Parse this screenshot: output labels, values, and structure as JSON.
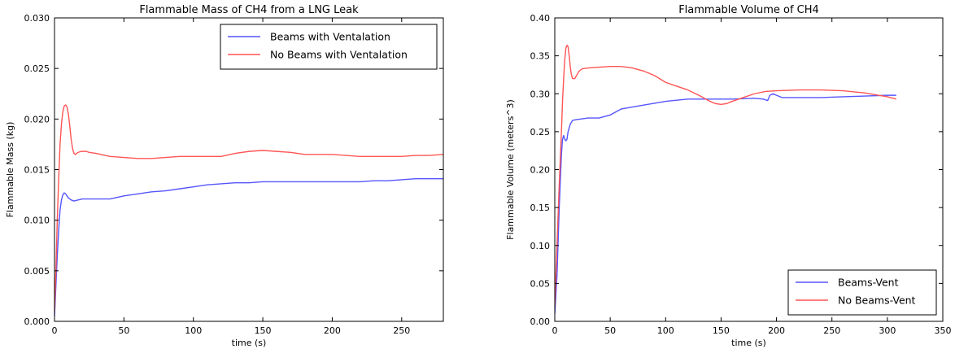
{
  "chart_data": [
    {
      "type": "line",
      "title": "Flammable Mass of CH4 from a LNG Leak",
      "xlabel": "time (s)",
      "ylabel": "Flammable Mass (kg)",
      "xlim": [
        0,
        280
      ],
      "ylim": [
        0,
        0.03
      ],
      "xticks": [
        "0",
        "50",
        "100",
        "150",
        "200",
        "250"
      ],
      "yticks": [
        "0.000",
        "0.005",
        "0.010",
        "0.015",
        "0.020",
        "0.025",
        "0.030"
      ],
      "grid": false,
      "legend_position": "top-right",
      "series": [
        {
          "name": "Beams with Ventalation",
          "color": "#5555ff",
          "x": [
            0,
            1,
            2,
            3,
            4,
            5,
            6,
            7,
            8,
            9,
            10,
            12,
            14,
            17,
            20,
            25,
            30,
            40,
            50,
            60,
            70,
            80,
            90,
            100,
            110,
            120,
            130,
            140,
            150,
            160,
            170,
            180,
            190,
            200,
            210,
            220,
            230,
            240,
            250,
            260,
            270,
            280
          ],
          "y": [
            0.0005,
            0.0035,
            0.0065,
            0.009,
            0.011,
            0.012,
            0.0125,
            0.0127,
            0.0126,
            0.0124,
            0.0122,
            0.012,
            0.0119,
            0.012,
            0.0121,
            0.0121,
            0.0121,
            0.0121,
            0.0124,
            0.0126,
            0.0128,
            0.0129,
            0.0131,
            0.0133,
            0.0135,
            0.0136,
            0.0137,
            0.0137,
            0.0138,
            0.0138,
            0.0138,
            0.0138,
            0.0138,
            0.0138,
            0.0138,
            0.0138,
            0.0139,
            0.0139,
            0.014,
            0.0141,
            0.0141,
            0.0141
          ]
        },
        {
          "name": "No Beams with Ventalation",
          "color": "#ff5555",
          "x": [
            0,
            1,
            2,
            3,
            4,
            5,
            6,
            7,
            8,
            9,
            10,
            11,
            12,
            13,
            14,
            15,
            17,
            19,
            21,
            23,
            25,
            30,
            40,
            50,
            60,
            70,
            80,
            90,
            100,
            110,
            120,
            130,
            140,
            150,
            160,
            170,
            180,
            190,
            200,
            210,
            220,
            230,
            240,
            250,
            260,
            270,
            280
          ],
          "y": [
            0.001,
            0.005,
            0.01,
            0.014,
            0.0175,
            0.0195,
            0.0207,
            0.0213,
            0.0214,
            0.0212,
            0.0205,
            0.0193,
            0.018,
            0.0171,
            0.0166,
            0.0165,
            0.0167,
            0.0168,
            0.0168,
            0.0168,
            0.0167,
            0.0166,
            0.0163,
            0.0162,
            0.0161,
            0.0161,
            0.0162,
            0.0163,
            0.0163,
            0.0163,
            0.0163,
            0.0166,
            0.0168,
            0.0169,
            0.0168,
            0.0167,
            0.0165,
            0.0165,
            0.0165,
            0.0164,
            0.0163,
            0.0163,
            0.0163,
            0.0163,
            0.0164,
            0.0164,
            0.0165
          ]
        }
      ]
    },
    {
      "type": "line",
      "title": "Flammable Volume of CH4",
      "xlabel": "time (s)",
      "ylabel": "Flammable Volume (meters^3)",
      "xlim": [
        0,
        350
      ],
      "ylim": [
        0,
        0.4
      ],
      "xticks": [
        "0",
        "50",
        "100",
        "150",
        "200",
        "250",
        "300",
        "350"
      ],
      "yticks": [
        "0.00",
        "0.05",
        "0.10",
        "0.15",
        "0.20",
        "0.25",
        "0.30",
        "0.35",
        "0.40"
      ],
      "grid": false,
      "legend_position": "bottom-right",
      "series": [
        {
          "name": "Beams-Vent",
          "color": "#5555ff",
          "x": [
            0,
            2,
            4,
            6,
            7,
            8,
            9,
            10,
            11,
            12,
            14,
            16,
            20,
            30,
            40,
            50,
            60,
            80,
            100,
            120,
            140,
            160,
            180,
            188,
            192,
            194,
            197,
            200,
            205,
            220,
            240,
            260,
            280,
            300,
            308
          ],
          "y": [
            0.01,
            0.06,
            0.15,
            0.22,
            0.24,
            0.245,
            0.24,
            0.238,
            0.24,
            0.25,
            0.26,
            0.265,
            0.266,
            0.268,
            0.268,
            0.272,
            0.28,
            0.285,
            0.29,
            0.293,
            0.293,
            0.293,
            0.294,
            0.293,
            0.291,
            0.298,
            0.3,
            0.298,
            0.295,
            0.295,
            0.295,
            0.296,
            0.297,
            0.298,
            0.298
          ]
        },
        {
          "name": "No Beams-Vent",
          "color": "#ff5555",
          "x": [
            0,
            2,
            4,
            6,
            7,
            8,
            9,
            10,
            11,
            12,
            13,
            14,
            15,
            16,
            18,
            20,
            22,
            25,
            30,
            40,
            50,
            60,
            70,
            80,
            90,
            100,
            110,
            120,
            130,
            140,
            145,
            150,
            155,
            160,
            170,
            180,
            190,
            200,
            220,
            240,
            260,
            280,
            300,
            308
          ],
          "y": [
            0.02,
            0.1,
            0.18,
            0.25,
            0.29,
            0.32,
            0.345,
            0.36,
            0.364,
            0.362,
            0.35,
            0.335,
            0.325,
            0.32,
            0.32,
            0.325,
            0.33,
            0.333,
            0.334,
            0.335,
            0.336,
            0.336,
            0.334,
            0.33,
            0.324,
            0.315,
            0.31,
            0.305,
            0.298,
            0.29,
            0.287,
            0.286,
            0.287,
            0.29,
            0.295,
            0.3,
            0.303,
            0.304,
            0.305,
            0.305,
            0.304,
            0.301,
            0.296,
            0.293
          ]
        }
      ]
    }
  ]
}
